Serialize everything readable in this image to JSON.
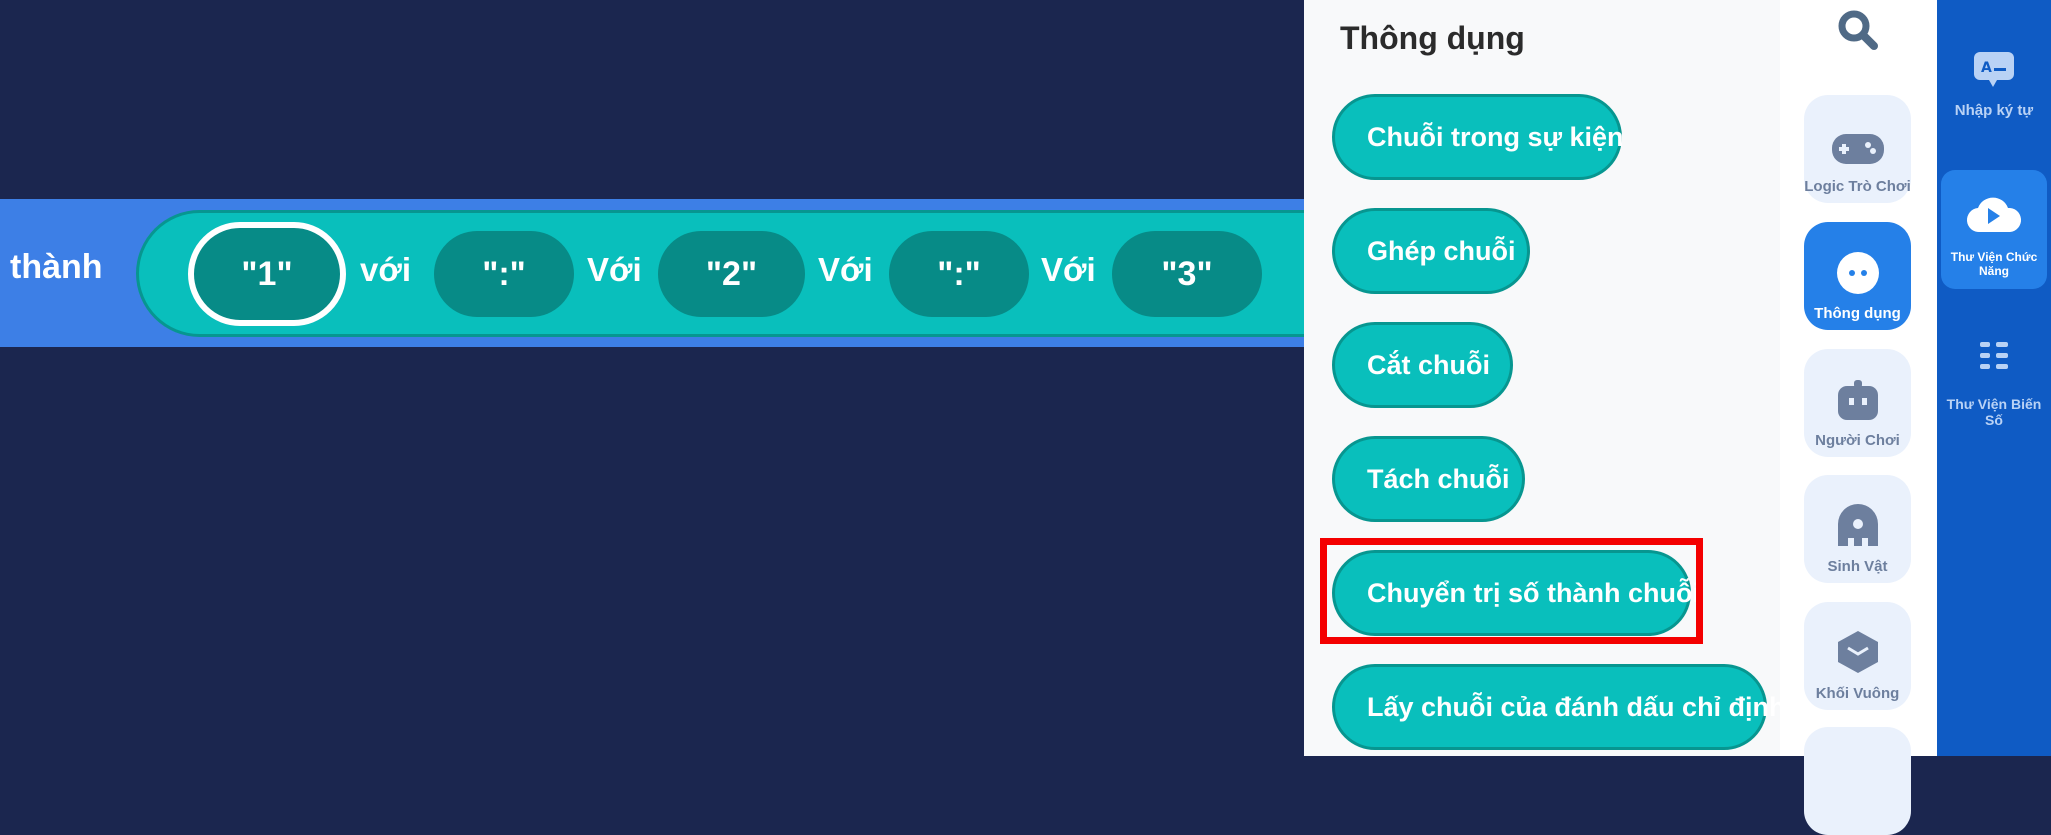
{
  "workspace": {
    "block_label": "thành",
    "join_items": [
      "\"1\"",
      "\":\"",
      "\"2\"",
      "\":\"",
      "\"3\""
    ],
    "join_words": [
      "với",
      "Với",
      "Với",
      "Với"
    ]
  },
  "palette": {
    "title": "Thông dụng",
    "blocks": [
      {
        "label": "Chuỗi trong sự kiện"
      },
      {
        "label": "Ghép chuỗi"
      },
      {
        "label": "Cắt chuỗi"
      },
      {
        "label": "Tách chuỗi"
      },
      {
        "label": "Chuyển trị số thành chuỗi",
        "highlighted": true
      },
      {
        "label": "Lấy chuỗi của đánh dấu chỉ định"
      }
    ],
    "highlight_color": "#f40000",
    "block_color": "#09bfbc"
  },
  "categories": {
    "search_icon": "search-icon",
    "items": [
      {
        "label": "Logic Trò Chơi",
        "icon": "gamepad-icon"
      },
      {
        "label": "Thông dụng",
        "icon": "dots-icon",
        "active": true
      },
      {
        "label": "Người Chơi",
        "icon": "robot-icon"
      },
      {
        "label": "Sinh Vật",
        "icon": "creature-icon"
      },
      {
        "label": "Khối Vuông",
        "icon": "cube-icon"
      }
    ]
  },
  "sidebar": {
    "items": [
      {
        "label": "Nhập ký tự",
        "icon": "text-input-icon"
      },
      {
        "label": "Thư Viện Chức Năng",
        "icon": "cloud-play-icon",
        "active": true
      },
      {
        "label": "Thư Viện Biến Số",
        "icon": "list-icon"
      }
    ]
  }
}
